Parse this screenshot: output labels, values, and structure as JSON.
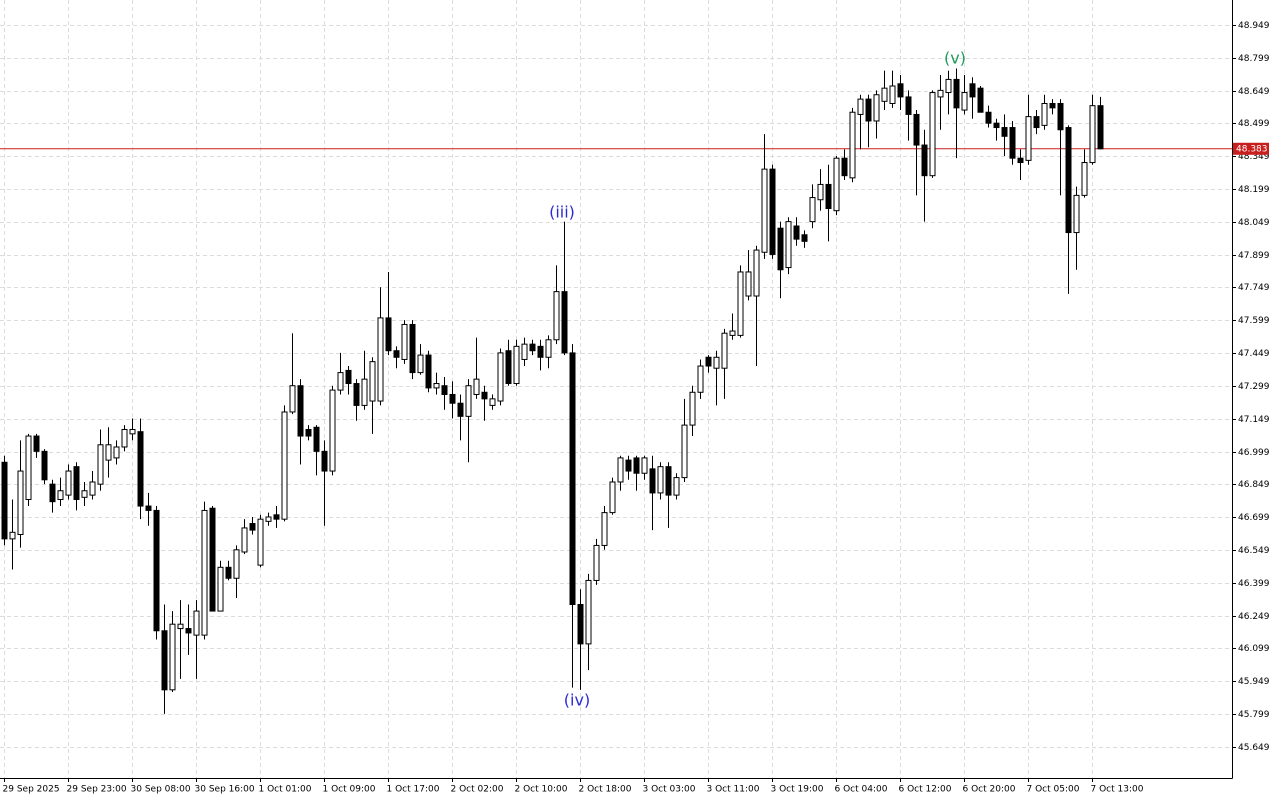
{
  "chart_data": {
    "type": "candlestick",
    "ylim": [
      45.507,
      49.063
    ],
    "yticks": [
      48.949,
      48.799,
      48.649,
      48.499,
      48.349,
      48.199,
      48.049,
      47.899,
      47.749,
      47.599,
      47.449,
      47.299,
      47.149,
      46.999,
      46.849,
      46.699,
      46.549,
      46.399,
      46.249,
      46.099,
      45.949,
      45.799,
      45.649
    ],
    "grid": true,
    "up_color": "#ffffff",
    "down_color": "#000000",
    "wick_color": "#000000",
    "price_line_color": "#c81e1e",
    "current_price": 48.383,
    "categories": [
      "29 Sep 2025",
      null,
      null,
      null,
      null,
      null,
      null,
      null,
      "29 Sep 23:00",
      null,
      null,
      null,
      null,
      null,
      null,
      null,
      "30 Sep 08:00",
      null,
      null,
      null,
      null,
      null,
      null,
      null,
      "30 Sep 16:00",
      null,
      null,
      null,
      null,
      null,
      null,
      null,
      "1 Oct 01:00",
      null,
      null,
      null,
      null,
      null,
      null,
      null,
      "1 Oct 09:00",
      null,
      null,
      null,
      null,
      null,
      null,
      null,
      "1 Oct 17:00",
      null,
      null,
      null,
      null,
      null,
      null,
      null,
      "2 Oct 02:00",
      null,
      null,
      null,
      null,
      null,
      null,
      null,
      "2 Oct 10:00",
      null,
      null,
      null,
      null,
      null,
      null,
      null,
      "2 Oct 18:00",
      null,
      null,
      null,
      null,
      null,
      null,
      null,
      "3 Oct 03:00",
      null,
      null,
      null,
      null,
      null,
      null,
      null,
      "3 Oct 11:00",
      null,
      null,
      null,
      null,
      null,
      null,
      null,
      "3 Oct 19:00",
      null,
      null,
      null,
      null,
      null,
      null,
      null,
      "6 Oct 04:00",
      null,
      null,
      null,
      null,
      null,
      null,
      null,
      "6 Oct 12:00",
      null,
      null,
      null,
      null,
      null,
      null,
      null,
      "6 Oct 20:00",
      null,
      null,
      null,
      null,
      null,
      null,
      null,
      "7 Oct 05:00",
      null,
      null,
      null,
      null,
      null,
      null,
      null,
      "7 Oct 13:00",
      null
    ],
    "open": [
      46.95,
      46.6,
      46.62,
      46.78,
      47.07,
      47.0,
      46.85,
      46.78,
      46.8,
      46.93,
      46.79,
      46.8,
      46.85,
      46.96,
      46.97,
      47.02,
      47.08,
      47.09,
      46.75,
      46.73,
      46.18,
      45.91,
      46.19,
      46.19,
      46.16,
      46.16,
      46.74,
      46.27,
      46.47,
      46.42,
      46.54,
      46.67,
      46.48,
      46.68,
      46.71,
      46.69,
      47.18,
      47.3,
      47.1,
      47.11,
      47.0,
      46.91,
      47.28,
      47.37,
      47.31,
      47.21,
      47.23,
      47.23,
      47.61,
      47.46,
      47.42,
      47.58,
      47.36,
      47.44,
      47.29,
      47.3,
      47.26,
      47.22,
      47.16,
      47.26,
      47.27,
      47.21,
      47.23,
      47.46,
      47.31,
      47.42,
      47.49,
      47.48,
      47.43,
      47.51,
      47.73,
      47.45,
      46.3,
      46.12,
      46.41,
      46.57,
      46.72,
      46.86,
      46.96,
      46.97,
      46.9,
      46.92,
      46.81,
      46.93,
      46.8,
      46.88,
      47.12,
      47.27,
      47.43,
      47.38,
      47.38,
      47.53,
      47.53,
      47.71,
      47.71,
      47.91,
      48.29,
      48.02,
      47.84,
      48.03,
      47.99,
      48.05,
      48.15,
      48.22,
      48.1,
      48.34,
      48.25,
      48.54,
      48.61,
      48.51,
      48.6,
      48.59,
      48.68,
      48.62,
      48.54,
      48.4,
      48.26,
      48.62,
      48.64,
      48.7,
      48.56,
      48.68,
      48.66,
      48.55,
      48.5,
      48.48,
      48.48,
      48.34,
      48.33,
      48.53,
      48.49,
      48.59,
      48.59,
      48.48,
      48.0,
      48.17,
      48.32,
      48.58
    ],
    "high": [
      46.98,
      46.78,
      47.05,
      47.08,
      47.08,
      47.01,
      46.87,
      46.88,
      46.94,
      46.95,
      46.86,
      46.91,
      47.1,
      47.11,
      47.05,
      47.12,
      47.15,
      47.15,
      46.81,
      46.75,
      46.3,
      46.27,
      46.32,
      46.3,
      46.32,
      46.77,
      46.75,
      46.5,
      46.5,
      46.57,
      46.69,
      46.7,
      46.71,
      46.72,
      46.75,
      47.21,
      47.54,
      47.33,
      47.12,
      47.12,
      47.05,
      47.3,
      47.45,
      47.39,
      47.33,
      47.46,
      47.43,
      47.75,
      47.82,
      47.48,
      47.6,
      47.6,
      47.49,
      47.46,
      47.36,
      47.34,
      47.32,
      47.26,
      47.33,
      47.52,
      47.3,
      47.26,
      47.47,
      47.51,
      47.51,
      47.52,
      47.51,
      47.51,
      47.53,
      47.85,
      48.05,
      47.49,
      46.37,
      46.44,
      46.6,
      46.75,
      46.88,
      46.98,
      46.98,
      46.98,
      46.98,
      46.98,
      46.95,
      46.95,
      46.9,
      47.24,
      47.3,
      47.42,
      47.44,
      47.46,
      47.56,
      47.63,
      47.85,
      47.92,
      47.94,
      48.45,
      48.31,
      48.05,
      48.07,
      48.07,
      48.01,
      48.22,
      48.29,
      48.31,
      48.35,
      48.38,
      48.57,
      48.63,
      48.63,
      48.65,
      48.74,
      48.74,
      48.72,
      48.65,
      48.56,
      48.47,
      48.65,
      48.72,
      48.74,
      48.75,
      48.72,
      48.71,
      48.67,
      48.58,
      48.52,
      48.54,
      48.51,
      48.38,
      48.63,
      48.56,
      48.63,
      48.61,
      48.61,
      48.49,
      48.21,
      48.38,
      48.63,
      48.62
    ],
    "low": [
      46.57,
      46.46,
      46.56,
      46.75,
      46.97,
      46.85,
      46.72,
      46.75,
      46.78,
      46.73,
      46.75,
      46.78,
      46.82,
      46.88,
      46.94,
      47.0,
      47.05,
      46.69,
      46.66,
      46.14,
      45.8,
      45.9,
      45.96,
      46.07,
      45.96,
      46.14,
      46.27,
      46.27,
      46.41,
      46.33,
      46.53,
      46.62,
      46.47,
      46.66,
      46.65,
      46.68,
      47.17,
      46.94,
      47.05,
      46.89,
      46.66,
      46.89,
      47.26,
      47.26,
      47.14,
      47.19,
      47.08,
      47.21,
      47.44,
      47.38,
      47.4,
      47.33,
      47.35,
      47.27,
      47.26,
      47.19,
      47.15,
      47.05,
      46.95,
      47.24,
      47.14,
      47.19,
      47.21,
      47.3,
      47.3,
      47.39,
      47.44,
      47.37,
      47.38,
      47.49,
      47.44,
      45.92,
      45.91,
      46.0,
      46.39,
      46.55,
      46.71,
      46.82,
      46.87,
      46.82,
      46.87,
      46.64,
      46.78,
      46.65,
      46.78,
      46.86,
      47.07,
      47.24,
      47.36,
      47.21,
      47.24,
      47.51,
      47.52,
      47.69,
      47.39,
      47.88,
      47.88,
      47.7,
      47.81,
      47.94,
      47.93,
      48.02,
      48.1,
      47.96,
      48.08,
      48.24,
      48.23,
      48.38,
      48.39,
      48.43,
      48.56,
      48.57,
      48.56,
      48.42,
      48.17,
      48.05,
      48.25,
      48.47,
      48.54,
      48.34,
      48.54,
      48.52,
      48.55,
      48.48,
      48.42,
      48.35,
      48.31,
      48.24,
      48.31,
      48.45,
      48.47,
      48.54,
      48.17,
      47.72,
      47.83,
      48.16,
      48.31,
      48.38
    ],
    "close": [
      46.6,
      46.63,
      46.91,
      47.07,
      47.0,
      46.87,
      46.77,
      46.82,
      46.91,
      46.78,
      46.82,
      46.86,
      47.03,
      47.03,
      47.02,
      47.1,
      47.1,
      46.75,
      46.73,
      46.18,
      45.91,
      46.21,
      46.21,
      46.17,
      46.27,
      46.73,
      46.27,
      46.47,
      46.42,
      46.55,
      46.65,
      46.64,
      46.69,
      46.7,
      46.69,
      47.18,
      47.3,
      47.07,
      47.07,
      47.0,
      46.91,
      47.28,
      47.36,
      47.31,
      47.21,
      47.33,
      47.41,
      47.61,
      47.46,
      47.43,
      47.58,
      47.36,
      47.44,
      47.29,
      47.31,
      47.26,
      47.22,
      47.16,
      47.3,
      47.33,
      47.24,
      47.24,
      47.45,
      47.31,
      47.48,
      47.49,
      47.46,
      47.43,
      47.51,
      47.73,
      47.45,
      46.3,
      46.12,
      46.41,
      46.57,
      46.72,
      46.86,
      46.97,
      46.91,
      46.9,
      46.97,
      46.81,
      46.93,
      46.8,
      46.88,
      47.12,
      47.27,
      47.39,
      47.39,
      47.43,
      47.54,
      47.55,
      47.82,
      47.82,
      47.92,
      48.29,
      47.9,
      47.83,
      48.05,
      47.97,
      47.96,
      48.16,
      48.22,
      48.11,
      48.34,
      48.26,
      48.55,
      48.61,
      48.51,
      48.63,
      48.66,
      48.67,
      48.62,
      48.54,
      48.4,
      48.26,
      48.64,
      48.65,
      48.7,
      48.57,
      48.64,
      48.62,
      48.55,
      48.5,
      48.48,
      48.44,
      48.34,
      48.32,
      48.53,
      48.48,
      48.59,
      48.57,
      48.47,
      48.0,
      48.17,
      48.32,
      48.58,
      48.383
    ],
    "annotations": [
      {
        "text": "(iii)",
        "color": "#2b2bd6"
      },
      {
        "text": "(iv)",
        "color": "#2b2bd6"
      },
      {
        "text": "(v)",
        "color": "#1f9a5a"
      }
    ]
  }
}
